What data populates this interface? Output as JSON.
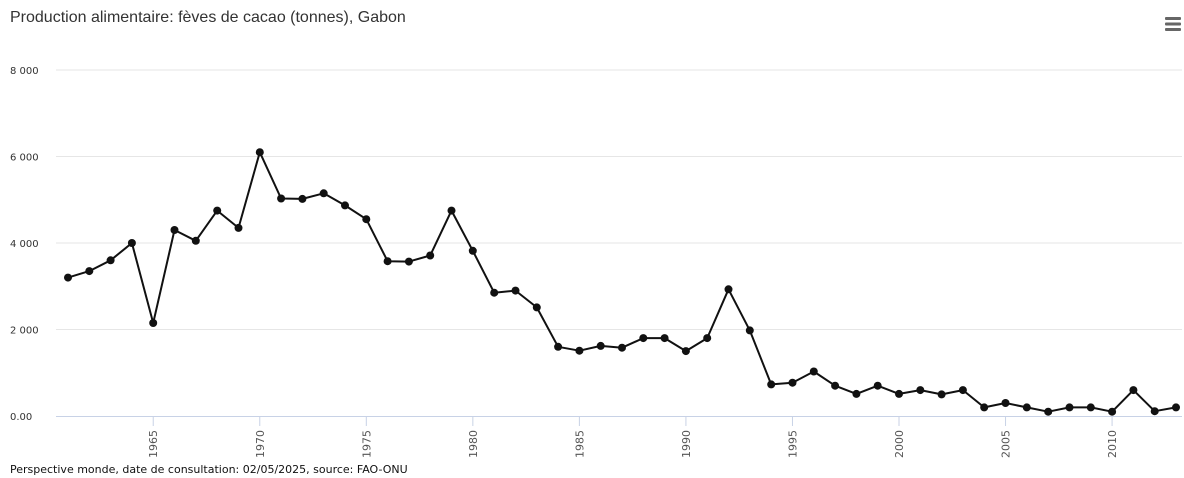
{
  "chart_data": {
    "type": "line",
    "title": "Production alimentaire: fèves de cacao (tonnes), Gabon",
    "xlabel": "",
    "ylabel": "",
    "ylim": [
      0,
      8000
    ],
    "xlim": [
      1961,
      2013
    ],
    "y_ticks": [
      {
        "value": 0,
        "label": "0.00"
      },
      {
        "value": 2000,
        "label": "2 000"
      },
      {
        "value": 4000,
        "label": "4 000"
      },
      {
        "value": 6000,
        "label": "6 000"
      },
      {
        "value": 8000,
        "label": "8 000"
      }
    ],
    "x_ticks": [
      1965,
      1970,
      1975,
      1980,
      1985,
      1990,
      1995,
      2000,
      2005,
      2010
    ],
    "grid": "horizontal",
    "legend": "none",
    "series": [
      {
        "color": "#111111",
        "x": [
          1961,
          1962,
          1963,
          1964,
          1965,
          1966,
          1967,
          1968,
          1969,
          1970,
          1971,
          1972,
          1973,
          1974,
          1975,
          1976,
          1977,
          1978,
          1979,
          1980,
          1981,
          1982,
          1983,
          1984,
          1985,
          1986,
          1987,
          1988,
          1989,
          1990,
          1991,
          1992,
          1993,
          1994,
          1995,
          1996,
          1997,
          1998,
          1999,
          2000,
          2001,
          2002,
          2003,
          2004,
          2005,
          2006,
          2007,
          2008,
          2009,
          2010,
          2011,
          2012,
          2013
        ],
        "values": [
          3200,
          3350,
          3600,
          4000,
          2150,
          4300,
          4050,
          4750,
          4350,
          6100,
          5030,
          5020,
          5150,
          4870,
          4550,
          3580,
          3570,
          3710,
          4750,
          3820,
          2850,
          2900,
          2510,
          1600,
          1510,
          1620,
          1580,
          1800,
          1800,
          1500,
          1800,
          2930,
          1980,
          730,
          770,
          1030,
          700,
          510,
          700,
          510,
          600,
          500,
          600,
          200,
          300,
          200,
          100,
          200,
          200,
          100,
          600,
          110,
          200
        ]
      }
    ]
  },
  "footer": {
    "source_text": "Perspective monde, date de consultation: 02/05/2025, source: FAO-ONU"
  },
  "toolbar": {
    "menu_icon": "hamburger-menu-icon"
  }
}
